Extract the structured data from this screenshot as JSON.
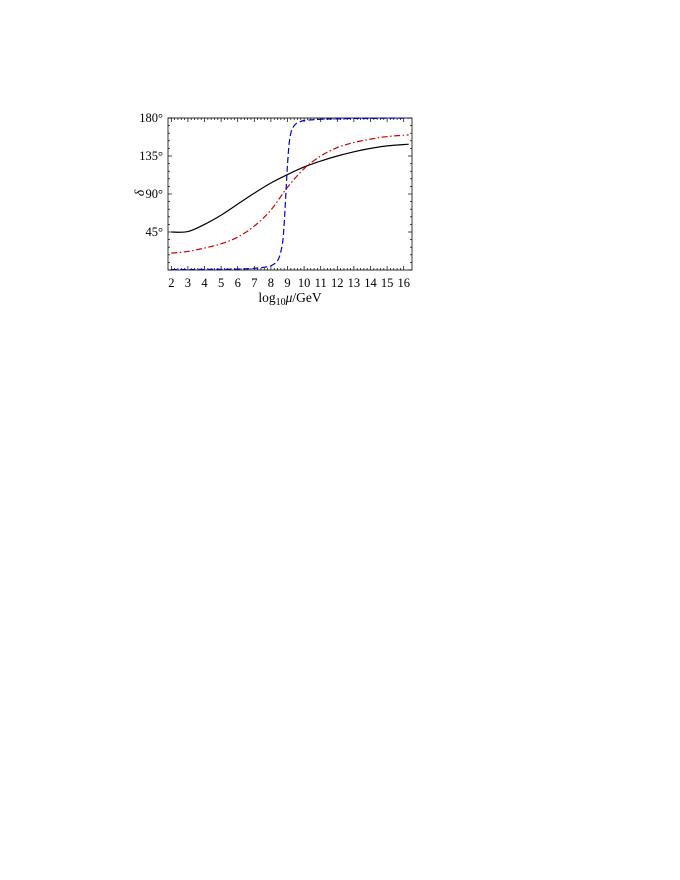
{
  "chart_data": {
    "type": "line",
    "title": "",
    "xlabel": {
      "prefix": "log",
      "subscript": "10",
      "mu": "μ",
      "suffix": "/GeV"
    },
    "ylabel": "δ",
    "xlim": [
      1.8,
      16.5
    ],
    "ylim": [
      0,
      180
    ],
    "x_ticks": [
      2,
      3,
      4,
      5,
      6,
      7,
      8,
      9,
      10,
      11,
      12,
      13,
      14,
      15,
      16
    ],
    "y_ticks": [
      45,
      90,
      135,
      180
    ],
    "y_tick_labels": [
      "45°",
      "90°",
      "135°",
      "180°"
    ],
    "grid": false,
    "legend": "none",
    "series": [
      {
        "color": "#000000",
        "dash": "solid",
        "x": [
          2,
          3,
          4,
          5,
          6,
          7,
          8,
          9,
          10,
          11,
          12,
          13,
          14,
          15,
          16.3
        ],
        "y": [
          45,
          45.5,
          54,
          65,
          78,
          91,
          103,
          113,
          122,
          129,
          135,
          140,
          144,
          147,
          149
        ]
      },
      {
        "color": "#cc0000",
        "dash": "dashdot",
        "x": [
          2,
          3,
          4,
          5,
          6,
          7,
          8,
          9,
          10,
          11,
          12,
          13,
          14,
          15,
          16.3
        ],
        "y": [
          20,
          22,
          26,
          31,
          39,
          52,
          71,
          98,
          120,
          135,
          145,
          151,
          155,
          158,
          160
        ]
      },
      {
        "color": "#0000cc",
        "dash": "dashed",
        "x": [
          2,
          3,
          4,
          5,
          6,
          7,
          7.5,
          8,
          8.3,
          8.5,
          8.7,
          8.8,
          8.9,
          9.0,
          9.1,
          9.2,
          9.3,
          9.5,
          9.7,
          10,
          11,
          12,
          13,
          14,
          15,
          16.3
        ],
        "y": [
          0.5,
          0.5,
          0.6,
          0.8,
          1,
          2,
          3,
          5,
          9,
          15,
          32,
          55,
          90,
          125,
          150,
          162,
          168,
          173,
          175,
          177,
          178.5,
          179,
          179.5,
          179.5,
          179.8,
          179.8
        ]
      }
    ]
  }
}
